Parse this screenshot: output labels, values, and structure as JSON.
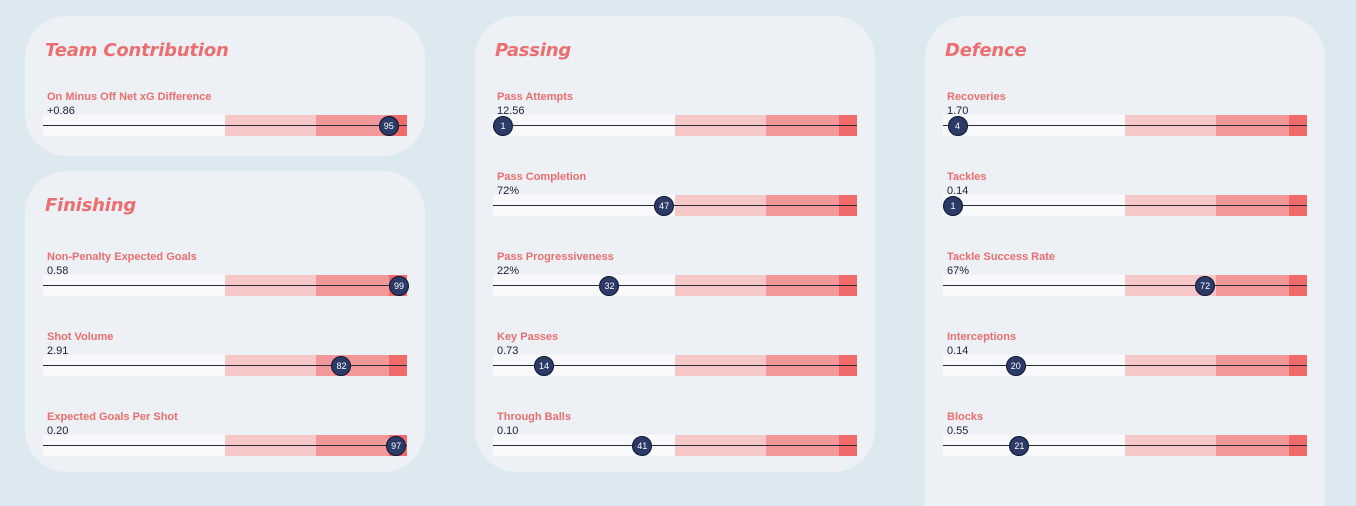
{
  "cards": [
    {
      "title": "Team Contribution",
      "metrics": [
        {
          "label": "On Minus Off Net xG Difference",
          "value": "+0.86",
          "percentile": 95
        }
      ]
    },
    {
      "title": "Finishing",
      "metrics": [
        {
          "label": "Non-Penalty Expected Goals",
          "value": "0.58",
          "percentile": 99
        },
        {
          "label": "Shot Volume",
          "value": "2.91",
          "percentile": 82
        },
        {
          "label": "Expected Goals Per Shot",
          "value": "0.20",
          "percentile": 97
        }
      ]
    },
    {
      "title": "Passing",
      "metrics": [
        {
          "label": "Pass Attempts",
          "value": "12.56",
          "percentile": 1
        },
        {
          "label": "Pass Completion",
          "value": "72%",
          "percentile": 47
        },
        {
          "label": "Pass Progressiveness",
          "value": "22%",
          "percentile": 32
        },
        {
          "label": "Key Passes",
          "value": "0.73",
          "percentile": 14
        },
        {
          "label": "Through Balls",
          "value": "0.10",
          "percentile": 41
        }
      ]
    },
    {
      "title": "Defence",
      "metrics": [
        {
          "label": "Recoveries",
          "value": "1.70",
          "percentile": 4
        },
        {
          "label": "Tackles",
          "value": "0.14",
          "percentile": 1
        },
        {
          "label": "Tackle Success Rate",
          "value": "67%",
          "percentile": 72
        },
        {
          "label": "Interceptions",
          "value": "0.14",
          "percentile": 20
        },
        {
          "label": "Blocks",
          "value": "0.55",
          "percentile": 21
        }
      ]
    }
  ]
}
